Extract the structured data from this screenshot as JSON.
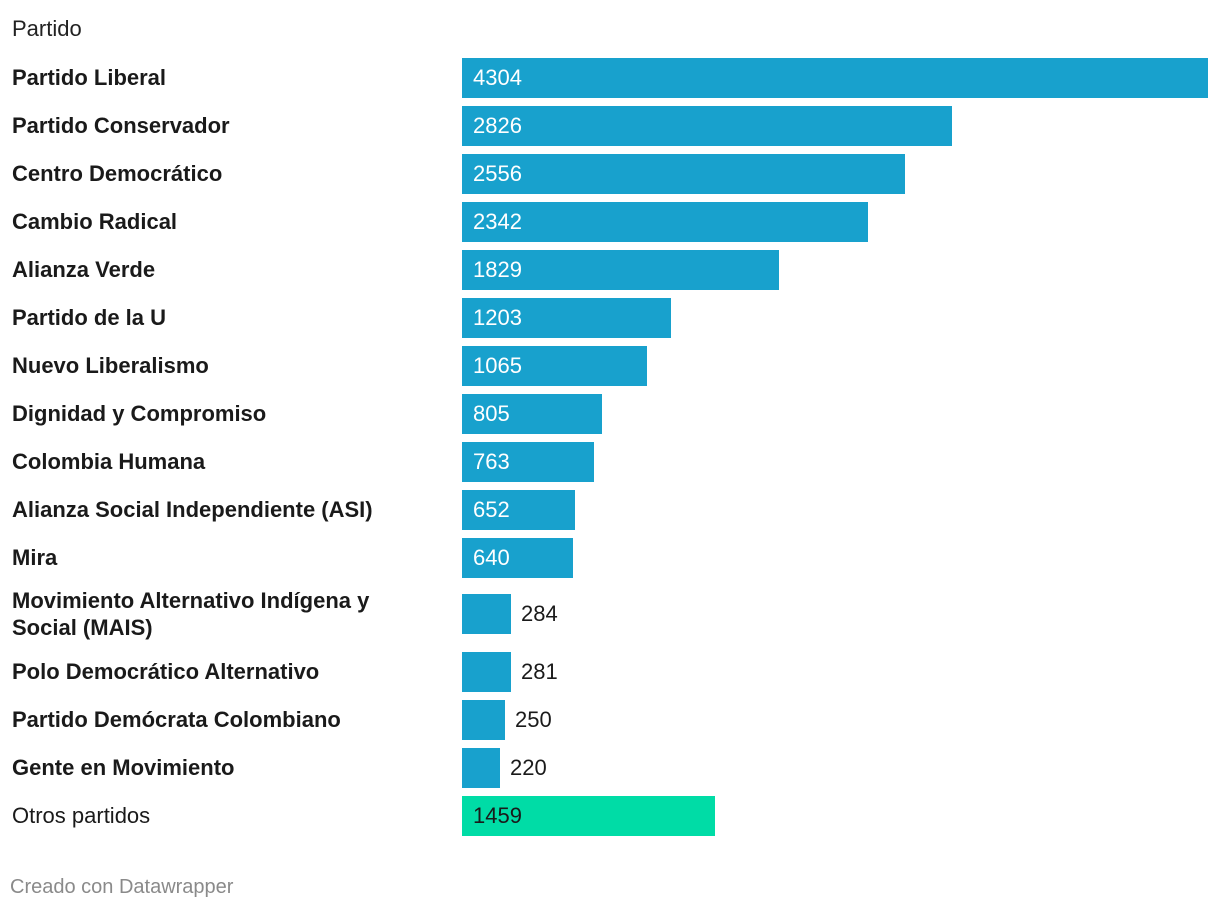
{
  "chart_data": {
    "type": "bar",
    "orientation": "horizontal",
    "column_header": "Partido",
    "categories": [
      "Partido Liberal",
      "Partido Conservador",
      "Centro Democrático",
      "Cambio Radical",
      "Alianza Verde",
      "Partido de la U",
      "Nuevo Liberalismo",
      "Dignidad y Compromiso",
      "Colombia Humana",
      "Alianza Social Independiente (ASI)",
      "Mira",
      "Movimiento Alternativo Indígena y Social (MAIS)",
      "Polo Democrático Alternativo",
      "Partido Demócrata Colombiano",
      "Gente en Movimiento",
      "Otros partidos"
    ],
    "values": [
      4304,
      2826,
      2556,
      2342,
      1829,
      1203,
      1065,
      805,
      763,
      652,
      640,
      284,
      281,
      250,
      220,
      1459
    ],
    "highlight_last": true,
    "colors": {
      "bar": "#18a1cd",
      "other": "#00dca6"
    },
    "xlim": [
      0,
      4304
    ],
    "footer": "Creado con Datawrapper"
  }
}
